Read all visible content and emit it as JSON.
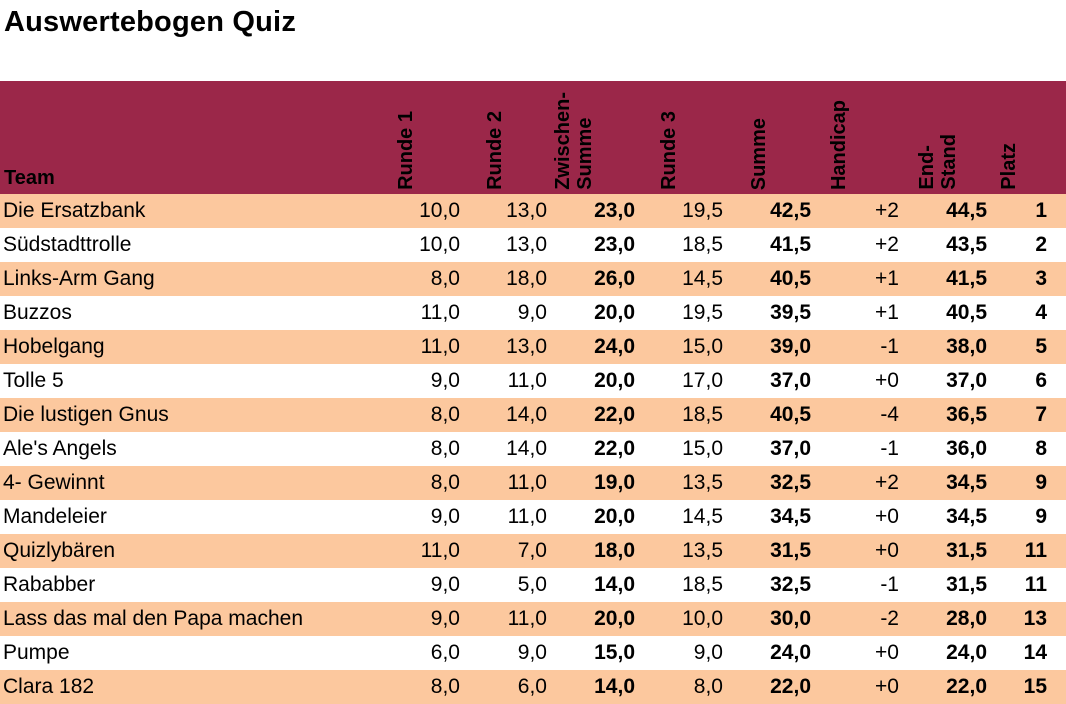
{
  "title": "Auswertebogen Quiz",
  "headers": {
    "team": "Team",
    "r1": "Runde 1",
    "r2": "Runde 2",
    "zw": "Zwischen-\nSumme",
    "r3": "Runde 3",
    "sum": "Summe",
    "hc": "Handicap",
    "end": "End-\nStand",
    "platz": "Platz"
  },
  "rows": [
    {
      "team": "Die Ersatzbank",
      "r1": "10,0",
      "r2": "13,0",
      "zw": "23,0",
      "r3": "19,5",
      "sum": "42,5",
      "hc": "+2",
      "end": "44,5",
      "platz": "1"
    },
    {
      "team": "Südstadttrolle",
      "r1": "10,0",
      "r2": "13,0",
      "zw": "23,0",
      "r3": "18,5",
      "sum": "41,5",
      "hc": "+2",
      "end": "43,5",
      "platz": "2"
    },
    {
      "team": "Links-Arm Gang",
      "r1": "8,0",
      "r2": "18,0",
      "zw": "26,0",
      "r3": "14,5",
      "sum": "40,5",
      "hc": "+1",
      "end": "41,5",
      "platz": "3"
    },
    {
      "team": "Buzzos",
      "r1": "11,0",
      "r2": "9,0",
      "zw": "20,0",
      "r3": "19,5",
      "sum": "39,5",
      "hc": "+1",
      "end": "40,5",
      "platz": "4"
    },
    {
      "team": "Hobelgang",
      "r1": "11,0",
      "r2": "13,0",
      "zw": "24,0",
      "r3": "15,0",
      "sum": "39,0",
      "hc": "-1",
      "end": "38,0",
      "platz": "5"
    },
    {
      "team": "Tolle 5",
      "r1": "9,0",
      "r2": "11,0",
      "zw": "20,0",
      "r3": "17,0",
      "sum": "37,0",
      "hc": "+0",
      "end": "37,0",
      "platz": "6"
    },
    {
      "team": "Die lustigen Gnus",
      "r1": "8,0",
      "r2": "14,0",
      "zw": "22,0",
      "r3": "18,5",
      "sum": "40,5",
      "hc": "-4",
      "end": "36,5",
      "platz": "7"
    },
    {
      "team": "Ale's Angels",
      "r1": "8,0",
      "r2": "14,0",
      "zw": "22,0",
      "r3": "15,0",
      "sum": "37,0",
      "hc": "-1",
      "end": "36,0",
      "platz": "8"
    },
    {
      "team": "4- Gewinnt",
      "r1": "8,0",
      "r2": "11,0",
      "zw": "19,0",
      "r3": "13,5",
      "sum": "32,5",
      "hc": "+2",
      "end": "34,5",
      "platz": "9"
    },
    {
      "team": "Mandeleier",
      "r1": "9,0",
      "r2": "11,0",
      "zw": "20,0",
      "r3": "14,5",
      "sum": "34,5",
      "hc": "+0",
      "end": "34,5",
      "platz": "9"
    },
    {
      "team": "Quizlybären",
      "r1": "11,0",
      "r2": "7,0",
      "zw": "18,0",
      "r3": "13,5",
      "sum": "31,5",
      "hc": "+0",
      "end": "31,5",
      "platz": "11"
    },
    {
      "team": "Rababber",
      "r1": "9,0",
      "r2": "5,0",
      "zw": "14,0",
      "r3": "18,5",
      "sum": "32,5",
      "hc": "-1",
      "end": "31,5",
      "platz": "11"
    },
    {
      "team": "Lass das mal den Papa machen",
      "r1": "9,0",
      "r2": "11,0",
      "zw": "20,0",
      "r3": "10,0",
      "sum": "30,0",
      "hc": "-2",
      "end": "28,0",
      "platz": "13"
    },
    {
      "team": "Pumpe",
      "r1": "6,0",
      "r2": "9,0",
      "zw": "15,0",
      "r3": "9,0",
      "sum": "24,0",
      "hc": "+0",
      "end": "24,0",
      "platz": "14"
    },
    {
      "team": "Clara 182",
      "r1": "8,0",
      "r2": "6,0",
      "zw": "14,0",
      "r3": "8,0",
      "sum": "22,0",
      "hc": "+0",
      "end": "22,0",
      "platz": "15"
    }
  ]
}
